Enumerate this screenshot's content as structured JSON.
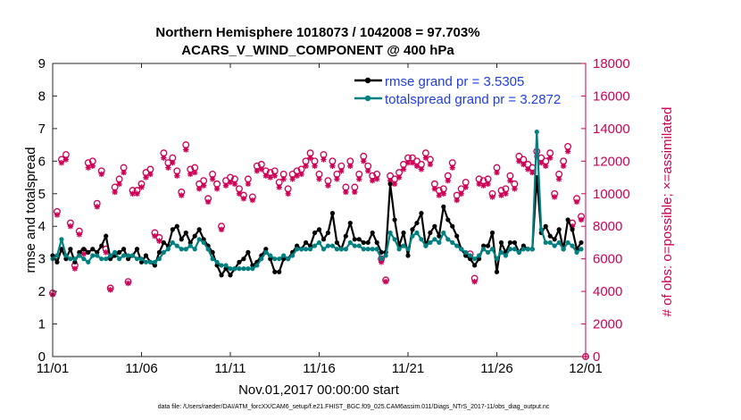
{
  "colors": {
    "rmse": "#000000",
    "spread": "#008080",
    "obs": "#cc0055",
    "legend_text": "#1f3de0"
  },
  "chart_data": {
    "type": "line",
    "title_line1": "Northern Hemisphere 1018073 / 1042008 = 97.703%",
    "title_line2": "ACARS_V_WIND_COMPONENT @ 400 hPa",
    "xlabel": "Nov.01,2017 00:00:00 start",
    "ylabel": "rmse and totalspread",
    "ylabel_right": "# of obs: o=possible; ×=assimilated",
    "xlim": [
      0,
      30
    ],
    "ylim": [
      0,
      9
    ],
    "ylim_right": [
      0,
      18000
    ],
    "x_ticks": [
      0,
      5,
      10,
      15,
      20,
      25,
      30
    ],
    "x_tick_labels": [
      "11/01",
      "11/06",
      "11/11",
      "11/16",
      "11/21",
      "11/26",
      "12/01"
    ],
    "y_ticks": [
      0,
      1,
      2,
      3,
      4,
      5,
      6,
      7,
      8,
      9
    ],
    "y_tick_labels": [
      "0",
      "1",
      "2",
      "3",
      "4",
      "5",
      "6",
      "7",
      "8",
      "9"
    ],
    "y_right_ticks": [
      0,
      2000,
      4000,
      6000,
      8000,
      10000,
      12000,
      14000,
      16000,
      18000
    ],
    "y_right_tick_labels": [
      "0",
      "2000",
      "4000",
      "6000",
      "8000",
      "10000",
      "12000",
      "14000",
      "16000",
      "18000"
    ],
    "grid": false,
    "legend_position": "top-right",
    "x": [
      0.0,
      0.25,
      0.5,
      0.75,
      1.0,
      1.25,
      1.5,
      1.75,
      2.0,
      2.25,
      2.5,
      2.75,
      3.0,
      3.25,
      3.5,
      3.75,
      4.0,
      4.25,
      4.5,
      4.75,
      5.0,
      5.25,
      5.5,
      5.75,
      6.0,
      6.25,
      6.5,
      6.75,
      7.0,
      7.25,
      7.5,
      7.75,
      8.0,
      8.25,
      8.5,
      8.75,
      9.0,
      9.25,
      9.5,
      9.75,
      10.0,
      10.25,
      10.5,
      10.75,
      11.0,
      11.25,
      11.5,
      11.75,
      12.0,
      12.25,
      12.5,
      12.75,
      13.0,
      13.25,
      13.5,
      13.75,
      14.0,
      14.25,
      14.5,
      14.75,
      15.0,
      15.25,
      15.5,
      15.75,
      16.0,
      16.25,
      16.5,
      16.75,
      17.0,
      17.25,
      17.5,
      17.75,
      18.0,
      18.25,
      18.5,
      18.75,
      19.0,
      19.25,
      19.5,
      19.75,
      20.0,
      20.25,
      20.5,
      20.75,
      21.0,
      21.25,
      21.5,
      21.75,
      22.0,
      22.25,
      22.5,
      22.75,
      23.0,
      23.25,
      23.5,
      23.75,
      24.0,
      24.25,
      24.5,
      24.75,
      25.0,
      25.25,
      25.5,
      25.75,
      26.0,
      26.25,
      26.5,
      26.75,
      27.0,
      27.25,
      27.5,
      27.75,
      28.0,
      28.25,
      28.5,
      28.75,
      29.0,
      29.25,
      29.5,
      29.75
    ],
    "series": [
      {
        "name": "rmse grand pr = 3.5305",
        "values": [
          3.1,
          2.9,
          3.3,
          3.0,
          3.3,
          2.9,
          3.2,
          3.3,
          3.2,
          3.3,
          3.2,
          3.4,
          3.7,
          3.0,
          3.1,
          3.2,
          3.3,
          3.0,
          3.1,
          3.3,
          2.9,
          3.1,
          2.9,
          2.8,
          3.2,
          3.5,
          3.4,
          3.9,
          4.0,
          3.6,
          3.8,
          3.5,
          3.7,
          3.9,
          3.6,
          3.4,
          3.2,
          2.8,
          2.5,
          2.7,
          2.5,
          2.7,
          2.9,
          3.0,
          3.2,
          2.8,
          2.9,
          3.1,
          3.3,
          3.0,
          2.6,
          2.6,
          3.0,
          3.0,
          3.2,
          3.4,
          3.3,
          3.5,
          3.4,
          3.8,
          3.9,
          3.6,
          3.8,
          4.4,
          3.5,
          3.3,
          3.7,
          4.1,
          3.6,
          3.6,
          3.5,
          3.5,
          3.8,
          3.5,
          3.2,
          3.2,
          5.3,
          4.2,
          3.4,
          3.8,
          3.1,
          3.9,
          4.1,
          4.4,
          3.4,
          3.8,
          4.0,
          3.7,
          4.6,
          4.2,
          4.0,
          3.7,
          3.3,
          3.1,
          3.0,
          2.8,
          3.0,
          3.4,
          3.4,
          3.8,
          2.6,
          3.5,
          3.2,
          3.5,
          3.5,
          3.2,
          3.4,
          3.3,
          3.3,
          5.5,
          3.8,
          4.0,
          3.7,
          3.6,
          3.9,
          3.3,
          4.2,
          3.9,
          3.3,
          3.5
        ]
      },
      {
        "name": "totalspread grand pr = 3.2872",
        "values": [
          3.0,
          3.1,
          3.6,
          3.1,
          3.0,
          3.0,
          3.1,
          3.0,
          2.9,
          3.1,
          3.1,
          3.0,
          3.0,
          3.1,
          3.2,
          3.0,
          3.1,
          3.1,
          3.1,
          3.0,
          3.0,
          2.9,
          2.9,
          2.9,
          3.0,
          3.2,
          3.3,
          3.5,
          3.4,
          3.3,
          3.3,
          3.4,
          3.3,
          3.6,
          3.5,
          3.3,
          3.0,
          2.9,
          2.8,
          2.8,
          2.7,
          2.7,
          2.7,
          2.7,
          2.7,
          2.7,
          2.8,
          3.0,
          3.2,
          3.1,
          3.0,
          3.0,
          3.1,
          3.0,
          3.1,
          3.3,
          3.3,
          3.3,
          3.3,
          3.4,
          3.5,
          3.3,
          3.4,
          3.4,
          3.3,
          3.3,
          3.3,
          3.5,
          3.4,
          3.4,
          3.3,
          3.3,
          3.3,
          3.3,
          3.0,
          3.1,
          3.8,
          3.6,
          3.3,
          3.4,
          3.3,
          3.7,
          3.8,
          3.6,
          3.4,
          3.5,
          3.6,
          3.5,
          3.8,
          3.6,
          3.5,
          3.4,
          3.3,
          3.2,
          3.1,
          3.0,
          3.1,
          3.3,
          3.2,
          3.3,
          3.0,
          3.2,
          3.1,
          3.3,
          3.3,
          3.2,
          3.3,
          3.3,
          3.3,
          6.9,
          3.9,
          3.5,
          3.5,
          3.4,
          3.5,
          3.3,
          3.5,
          3.4,
          3.2,
          3.3
        ]
      },
      {
        "name": "possible",
        "values": [
          3900,
          8900,
          12100,
          12400,
          8200,
          5600,
          7700,
          6500,
          11900,
          12000,
          9400,
          11400,
          6600,
          4200,
          10400,
          10900,
          11600,
          4600,
          10200,
          10200,
          10600,
          11300,
          11500,
          7600,
          7300,
          12500,
          11900,
          12200,
          11400,
          10100,
          13000,
          11500,
          11600,
          10600,
          10800,
          9700,
          11200,
          10600,
          8000,
          10800,
          11000,
          10900,
          10300,
          9900,
          10900,
          9800,
          11700,
          11800,
          11400,
          11300,
          11400,
          10700,
          11200,
          10300,
          11200,
          11400,
          11500,
          12000,
          12500,
          12000,
          11200,
          12400,
          10800,
          12000,
          11200,
          11700,
          10400,
          12000,
          10400,
          11200,
          12300,
          11700,
          11100,
          11200,
          6000,
          4700,
          11100,
          10900,
          11300,
          11800,
          12200,
          12200,
          12000,
          11800,
          12500,
          12100,
          10600,
          10200,
          10300,
          11100,
          11900,
          9900,
          10300,
          10700,
          6300,
          4800,
          10900,
          10800,
          10900,
          10000,
          11600,
          10200,
          10300,
          11100,
          10600,
          12300,
          12100,
          11800,
          11600,
          12600,
          12200,
          12000,
          12500,
          10000,
          11200,
          12000,
          12900,
          8200,
          9700,
          8600
        ]
      },
      {
        "name": "assimilated",
        "values": [
          3800,
          8700,
          11900,
          12100,
          8000,
          5400,
          7500,
          6300,
          11600,
          11700,
          9200,
          11200,
          6400,
          4100,
          10100,
          10600,
          11300,
          4500,
          10000,
          10000,
          10400,
          11000,
          11200,
          7400,
          7100,
          12200,
          11600,
          11900,
          11100,
          9900,
          12700,
          11200,
          11300,
          10300,
          10500,
          9500,
          10900,
          10300,
          7800,
          10500,
          10700,
          10600,
          10000,
          9700,
          10600,
          9600,
          11400,
          11500,
          11100,
          11000,
          11100,
          10400,
          10900,
          10000,
          10900,
          11100,
          11200,
          11700,
          12200,
          11700,
          10900,
          12100,
          10500,
          11700,
          10900,
          11400,
          10100,
          11700,
          10100,
          10900,
          12000,
          11400,
          10800,
          10900,
          5800,
          4600,
          10800,
          10600,
          11000,
          11500,
          11900,
          11900,
          11700,
          11500,
          12200,
          11800,
          10300,
          9900,
          10000,
          10800,
          11600,
          9600,
          10000,
          10400,
          6100,
          4600,
          10600,
          10500,
          10600,
          9800,
          11300,
          9900,
          10000,
          10800,
          10300,
          12000,
          11800,
          11500,
          11300,
          12300,
          11900,
          11700,
          12200,
          9800,
          10900,
          11700,
          12600,
          8000,
          9500,
          8400
        ]
      }
    ],
    "legend": [
      "rmse grand pr = 3.5305",
      "totalspread grand pr = 3.2872"
    ]
  },
  "footer": "data file: /Users/raeder/DAI/ATM_forcXX/CAM6_setup/f.e21.FHIST_BGC.f09_025.CAM6assim.011/Diags_NTrS_2017-11/obs_diag_output.nc"
}
